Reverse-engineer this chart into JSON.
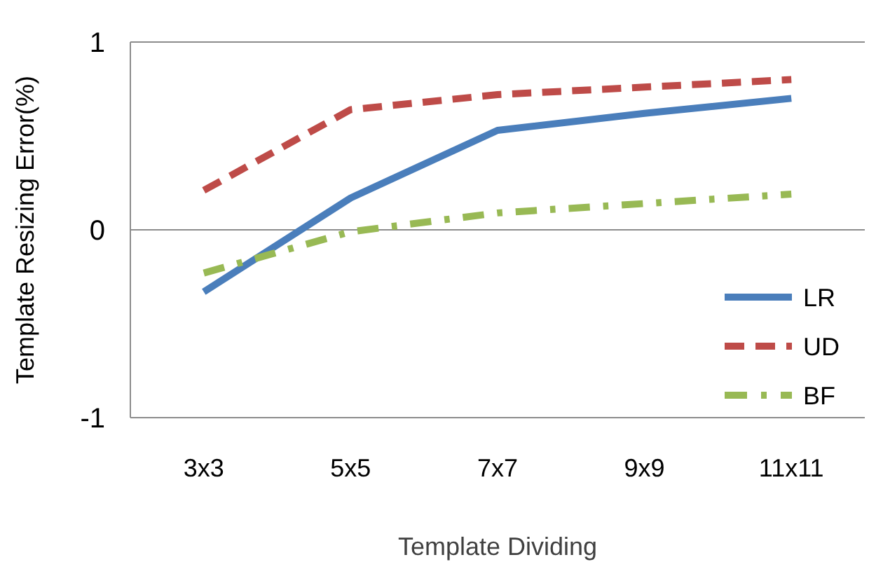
{
  "chart_data": {
    "type": "line",
    "xlabel": "Template Dividing",
    "ylabel": "Template Resizing Error(%)",
    "categories": [
      "3x3",
      "5x5",
      "7x7",
      "9x9",
      "11x11"
    ],
    "series": [
      {
        "name": "LR",
        "color": "#4a7ebb",
        "line_style": "solid",
        "values": [
          -0.33,
          0.17,
          0.53,
          0.62,
          0.7
        ]
      },
      {
        "name": "UD",
        "color": "#be4b48",
        "line_style": "dashed",
        "values": [
          0.21,
          0.64,
          0.72,
          0.76,
          0.8
        ]
      },
      {
        "name": "BF",
        "color": "#98b954",
        "line_style": "dashdot",
        "values": [
          -0.23,
          -0.01,
          0.09,
          0.14,
          0.19
        ]
      }
    ],
    "ylim": [
      -1,
      1
    ],
    "yticks": [
      -1,
      0,
      1
    ],
    "grid": "y",
    "legend": "bottom right"
  }
}
